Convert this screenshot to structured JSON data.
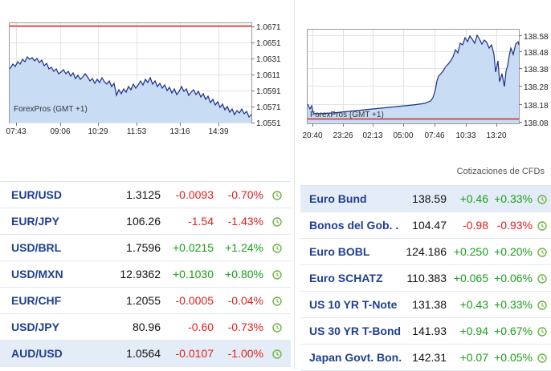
{
  "left_chart": {
    "y_ticks": [
      "1.0671",
      "1.0651",
      "1.0631",
      "1.0611",
      "1.0591",
      "1.0571",
      "1.0551"
    ],
    "x_ticks": [
      "07:43",
      "09:06",
      "10:29",
      "11:53",
      "13:16",
      "14:39"
    ],
    "watermark": "ForexPros (GMT +1)",
    "line_color": "#1c2f86",
    "fill_color": "#c8dcf4",
    "ref_line_color": "#e02020"
  },
  "right_chart": {
    "y_ticks": [
      "138.58",
      "138.48",
      "138.38",
      "138.28",
      "138.18",
      "138.08"
    ],
    "x_ticks": [
      "20:40",
      "23:26",
      "02:13",
      "05:00",
      "07:46",
      "10:33",
      "13:20"
    ],
    "watermark": "ForexPros (GMT +1)",
    "line_color": "#1c2f86",
    "fill_color": "#c8dcf4",
    "ref_line_color": "#e02020"
  },
  "right_caption": "Cotizaciones de CFDs",
  "forex_quotes": [
    {
      "name": "EUR/USD",
      "last": "1.3125",
      "change": "-0.0093",
      "pct": "-0.70%",
      "dir": "neg",
      "highlight": false
    },
    {
      "name": "EUR/JPY",
      "last": "106.26",
      "change": "-1.54",
      "pct": "-1.43%",
      "dir": "neg",
      "highlight": false
    },
    {
      "name": "USD/BRL",
      "last": "1.7596",
      "change": "+0.0215",
      "pct": "+1.24%",
      "dir": "pos",
      "highlight": false
    },
    {
      "name": "USD/MXN",
      "last": "12.9362",
      "change": "+0.1030",
      "pct": "+0.80%",
      "dir": "pos",
      "highlight": false
    },
    {
      "name": "EUR/CHF",
      "last": "1.2055",
      "change": "-0.0005",
      "pct": "-0.04%",
      "dir": "neg",
      "highlight": false
    },
    {
      "name": "USD/JPY",
      "last": "80.96",
      "change": "-0.60",
      "pct": "-0.73%",
      "dir": "neg",
      "highlight": false
    },
    {
      "name": "AUD/USD",
      "last": "1.0564",
      "change": "-0.0107",
      "pct": "-1.00%",
      "dir": "neg",
      "highlight": true
    }
  ],
  "cfd_quotes": [
    {
      "name": "Euro Bund",
      "last": "138.59",
      "change": "+0.46",
      "pct": "+0.33%",
      "dir": "pos",
      "highlight": true
    },
    {
      "name": "Bonos del Gob. .",
      "last": "104.47",
      "change": "-0.98",
      "pct": "-0.93%",
      "dir": "neg",
      "highlight": false
    },
    {
      "name": "Euro BOBL",
      "last": "124.186",
      "change": "+0.250",
      "pct": "+0.20%",
      "dir": "pos",
      "highlight": false
    },
    {
      "name": "Euro SCHATZ",
      "last": "110.383",
      "change": "+0.065",
      "pct": "+0.06%",
      "dir": "pos",
      "highlight": false
    },
    {
      "name": "US 10 YR T-Note",
      "last": "131.38",
      "change": "+0.43",
      "pct": "+0.33%",
      "dir": "pos",
      "highlight": false
    },
    {
      "name": "US 30 YR T-Bond",
      "last": "141.93",
      "change": "+0.94",
      "pct": "+0.67%",
      "dir": "pos",
      "highlight": false
    },
    {
      "name": "Japan Govt. Bon.",
      "last": "142.31",
      "change": "+0.07",
      "pct": "+0.05%",
      "dir": "pos",
      "highlight": false
    }
  ],
  "icons": {
    "clock": "clock-icon"
  },
  "colors": {
    "name": "#1f3f8e",
    "positive": "#1a9e1a",
    "negative": "#e0201c",
    "clock": "#6db33f",
    "highlight_row": "#e4edf7"
  }
}
